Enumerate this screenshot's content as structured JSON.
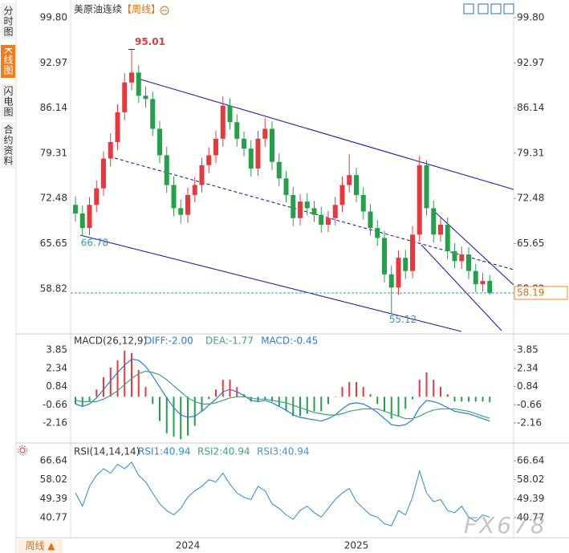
{
  "sidebar_tabs": [
    "分时图",
    "K线图",
    "闪电图",
    "合约资料"
  ],
  "period_button": "周线 ▲",
  "watermark": "FX678",
  "chart_data": [
    {
      "type": "candlestick",
      "title": "美原油连续",
      "period": "【周线】",
      "up_color": "#e8383d",
      "down_color": "#23a04a",
      "categories": [
        null,
        null,
        null,
        null,
        null,
        null,
        null,
        null,
        null,
        null,
        null,
        null,
        null,
        null,
        null,
        null,
        "2024",
        null,
        null,
        null,
        null,
        null,
        null,
        null,
        null,
        null,
        null,
        null,
        null,
        null,
        null,
        null,
        null,
        null,
        null,
        null,
        null,
        null,
        null,
        null,
        "2025",
        null,
        null,
        null,
        null,
        null,
        null,
        null,
        null,
        null,
        null,
        null,
        null,
        null,
        null,
        null,
        null,
        null,
        null,
        null
      ],
      "open": [
        71.5,
        70.2,
        68.0,
        71.5,
        74.0,
        78.5,
        81.0,
        85.5,
        90.0,
        91.5,
        88.0,
        87.5,
        83.0,
        79.0,
        74.5,
        71.0,
        70.0,
        73.0,
        74.5,
        77.5,
        79.0,
        81.5,
        86.5,
        84.0,
        81.5,
        80.0,
        77.0,
        81.5,
        83.0,
        78.0,
        75.5,
        73.0,
        69.5,
        72.0,
        71.0,
        70.0,
        68.5,
        69.5,
        71.5,
        74.5,
        76.0,
        73.0,
        70.5,
        68.0,
        66.5,
        61.0,
        59.0,
        63.5,
        61.5,
        67.0,
        77.5,
        71.0,
        67.0,
        68.5,
        64.5,
        63.0,
        64.0,
        61.5,
        59.5,
        60.0
      ],
      "high": [
        72.8,
        71.4,
        72.7,
        75.2,
        79.6,
        82.3,
        86.7,
        91.4,
        95.01,
        92.6,
        89.4,
        88.6,
        84.2,
        80.3,
        75.8,
        72.3,
        74.1,
        75.7,
        78.6,
        80.2,
        82.7,
        87.9,
        87.6,
        85.2,
        82.6,
        81.3,
        82.7,
        84.6,
        84.1,
        79.3,
        76.6,
        74.2,
        73.1,
        73.2,
        72.1,
        71.2,
        70.6,
        72.7,
        75.8,
        79.2,
        77.1,
        74.2,
        71.6,
        69.2,
        67.6,
        62.3,
        64.6,
        64.7,
        68.3,
        78.9,
        78.3,
        72.2,
        69.8,
        69.6,
        65.7,
        65.2,
        65.1,
        62.6,
        61.2,
        60.9
      ],
      "low": [
        69.0,
        66.78,
        66.9,
        70.4,
        72.9,
        77.3,
        79.8,
        84.3,
        88.8,
        86.9,
        86.2,
        81.9,
        77.8,
        73.3,
        69.8,
        68.7,
        68.8,
        71.9,
        73.4,
        76.3,
        77.8,
        80.3,
        82.9,
        80.3,
        78.8,
        75.8,
        75.9,
        80.3,
        76.8,
        74.3,
        71.9,
        68.3,
        68.4,
        69.9,
        68.9,
        67.3,
        67.4,
        68.4,
        70.4,
        73.4,
        71.9,
        69.3,
        66.9,
        65.3,
        59.8,
        55.12,
        57.9,
        60.3,
        60.4,
        65.9,
        69.9,
        65.8,
        65.9,
        63.3,
        61.9,
        61.8,
        60.3,
        58.3,
        58.4,
        57.9
      ],
      "close": [
        70.2,
        68.0,
        71.5,
        74.0,
        78.5,
        81.0,
        85.5,
        90.0,
        91.5,
        88.0,
        87.5,
        83.0,
        79.0,
        74.5,
        71.0,
        70.0,
        73.0,
        74.5,
        77.5,
        79.0,
        81.5,
        86.5,
        84.0,
        81.5,
        80.0,
        77.0,
        81.5,
        83.0,
        78.0,
        75.5,
        73.0,
        69.5,
        72.0,
        71.0,
        70.0,
        68.5,
        69.5,
        71.5,
        74.5,
        76.0,
        73.0,
        70.5,
        68.0,
        66.5,
        61.0,
        59.0,
        63.5,
        61.5,
        67.0,
        77.5,
        71.0,
        67.0,
        68.5,
        64.5,
        63.0,
        64.0,
        61.5,
        59.5,
        60.0,
        58.19
      ],
      "ylim": [
        52.12,
        102.47
      ],
      "yticks": [
        {
          "value": 99.8,
          "label": "99.80"
        },
        92.97,
        86.14,
        79.31,
        72.48,
        65.65,
        58.82
      ]
    },
    {
      "type": "macd",
      "title": "MACD(26,12,9)",
      "up_color": "#e8383d",
      "down_color": "#23a04a",
      "series": [
        {
          "name": "DIFF:-2.00",
          "color": "#2a7bd8",
          "values": [
            -0.6,
            -0.8,
            -0.6,
            -0.1,
            0.6,
            1.3,
            2.0,
            2.6,
            3.1,
            3.0,
            2.5,
            1.7,
            0.8,
            -0.1,
            -0.9,
            -1.5,
            -1.7,
            -1.6,
            -1.2,
            -0.7,
            -0.2,
            0.4,
            0.6,
            0.4,
            0.1,
            -0.3,
            -0.4,
            -0.3,
            -0.5,
            -0.8,
            -1.1,
            -1.5,
            -1.7,
            -1.8,
            -1.9,
            -2.0,
            -1.8,
            -1.5,
            -1.0,
            -0.6,
            -0.5,
            -0.6,
            -0.9,
            -1.3,
            -1.8,
            -2.3,
            -2.4,
            -2.3,
            -1.9,
            -0.9,
            -0.3,
            -0.4,
            -0.6,
            -0.9,
            -1.2,
            -1.3,
            -1.4,
            -1.6,
            -1.8,
            -2.0
          ]
        },
        {
          "name": "DEA:-1.77",
          "color": "#3aa57a",
          "values": [
            -0.3,
            -0.4,
            -0.4,
            -0.4,
            -0.2,
            0.1,
            0.5,
            1.0,
            1.5,
            1.9,
            2.1,
            2.0,
            1.8,
            1.4,
            0.9,
            0.4,
            -0.1,
            -0.4,
            -0.6,
            -0.6,
            -0.5,
            -0.3,
            -0.1,
            0.0,
            0.0,
            -0.1,
            -0.2,
            -0.2,
            -0.3,
            -0.4,
            -0.5,
            -0.7,
            -0.9,
            -1.1,
            -1.3,
            -1.4,
            -1.5,
            -1.5,
            -1.4,
            -1.2,
            -1.1,
            -1.0,
            -1.0,
            -1.0,
            -1.2,
            -1.4,
            -1.6,
            -1.8,
            -1.8,
            -1.6,
            -1.3,
            -1.1,
            -1.0,
            -1.0,
            -1.0,
            -1.1,
            -1.2,
            -1.4,
            -1.6,
            -1.77
          ]
        },
        {
          "name": "MACD:-0.45",
          "color": "#2a7bd8",
          "values": [
            -0.6,
            -0.8,
            -0.4,
            0.6,
            1.6,
            2.4,
            3.0,
            3.8,
            3.6,
            2.2,
            0.8,
            -0.6,
            -2.0,
            -3.0,
            -3.3,
            -3.5,
            -3.2,
            -2.4,
            -1.2,
            -0.2,
            0.6,
            1.4,
            1.4,
            0.8,
            0.2,
            -0.4,
            -0.4,
            -0.2,
            -0.4,
            -0.8,
            -1.2,
            -1.6,
            -1.6,
            -1.4,
            -1.2,
            -1.2,
            -0.6,
            0.0,
            0.8,
            1.2,
            1.2,
            0.8,
            0.2,
            -0.6,
            -1.2,
            -1.8,
            -1.6,
            -1.0,
            -0.2,
            1.4,
            2.0,
            1.4,
            0.8,
            0.2,
            -0.4,
            -0.4,
            -0.4,
            -0.4,
            -0.4,
            -0.45
          ]
        }
      ],
      "ylim": [
        -3.68,
        5.04
      ],
      "yticks": [
        3.85,
        2.34,
        0.84,
        -0.66,
        -2.16
      ]
    },
    {
      "type": "line",
      "title": "RSI(14,14,14)",
      "series": [
        {
          "name": "RSI1:40.94",
          "color": "#2a8ad8",
          "values": [
            52,
            46,
            55,
            60,
            63,
            61,
            65,
            63,
            66,
            60,
            57,
            52,
            47,
            44,
            42,
            45,
            50,
            53,
            55,
            58,
            57,
            61,
            56,
            52,
            50,
            49,
            55,
            53,
            47,
            45,
            42,
            40,
            44,
            46,
            43,
            41,
            45,
            49,
            52,
            54,
            48,
            45,
            42,
            41,
            38,
            37,
            44,
            42,
            50,
            62,
            52,
            48,
            49,
            44,
            43,
            46,
            41,
            39,
            42,
            40.94
          ]
        }
      ],
      "legend_extra": [
        {
          "text": "RSI2:40.94",
          "color": "#3aa57a"
        },
        {
          "text": "RSI3:40.94",
          "color": "#4a8fd0"
        }
      ],
      "ylim": [
        31.6,
        73.61
      ],
      "yticks": [
        66.64,
        58.02,
        49.39,
        40.77
      ]
    }
  ]
}
